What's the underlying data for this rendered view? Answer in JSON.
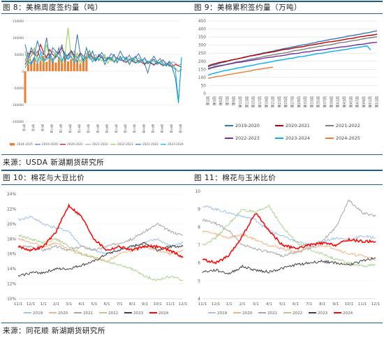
{
  "figures": {
    "fig8_title": "图 8：美棉周度签约量（吨）",
    "fig9_title": "图 9：美棉累积签约量（万吨）",
    "fig10_title": "图 10：棉花与大豆比价",
    "fig11_title": "图 11：棉花与玉米比价",
    "source_top": "来源：USDA  新湖期货研究所",
    "source_bottom": "来源：同花顺  新湖期货研究所"
  },
  "colors": {
    "rule": "#1f5f8b",
    "axis_text": "#595959",
    "grid": "#d9d9d9"
  },
  "chart_data": [
    {
      "id": "fig8",
      "type": "bar",
      "title": "",
      "ylim": [
        -150000,
        150000
      ],
      "yticks": [
        "150000",
        "100000",
        "50000",
        "0",
        "-50000",
        "-100000",
        "-150000"
      ],
      "ytick_values": [
        150000,
        100000,
        50000,
        0,
        -50000,
        -100000,
        -150000
      ],
      "xticks": [
        "第1周",
        "第4周",
        "第7周",
        "第10周",
        "第13周",
        "第16周",
        "第19周",
        "第22周",
        "第25周",
        "第28周",
        "第31周",
        "第34周",
        "第37周",
        "第40周",
        "第43周",
        "第46周",
        "第49周",
        "第52周"
      ],
      "legend_position": "bottom",
      "series": [
        {
          "name": "2024-2025",
          "kind": "bar",
          "color": "#ed7d31",
          "values": [
            -95000,
            35000,
            27000,
            41000,
            24000,
            30000,
            45000,
            28000,
            50000,
            38000,
            26000,
            42000,
            31000,
            48000,
            29000,
            36000,
            40000,
            33000,
            22000,
            37000,
            44000
          ]
        },
        {
          "name": "2019-2020",
          "kind": "line",
          "color": "#4472c4",
          "values": [
            30000,
            55000,
            25000,
            42000,
            60000,
            38000,
            28000,
            45000,
            52000,
            35000,
            40000,
            70000,
            30000,
            48000,
            36000,
            58000,
            42000,
            28000,
            50000,
            34000,
            46000,
            62000,
            38000,
            30000,
            44000,
            56000,
            40000,
            34000,
            52000,
            46000,
            38000,
            60000,
            44000,
            36000,
            48000,
            30000,
            40000,
            52000,
            34000,
            20000,
            -5000,
            30000,
            45000,
            28000,
            38000,
            22000,
            15000,
            30000,
            20000,
            8000,
            -2000,
            5000
          ]
        },
        {
          "name": "2020-2021",
          "kind": "line",
          "color": "#c00000",
          "values": [
            20000,
            40000,
            60000,
            50000,
            45000,
            80000,
            55000,
            40000,
            65000,
            50000,
            42000,
            58000,
            70000,
            50000,
            46000,
            62000,
            48000,
            40000,
            55000,
            44000,
            36000,
            50000,
            42000,
            34000,
            46000,
            40000,
            30000,
            42000,
            36000,
            28000,
            40000,
            34000,
            30000,
            26000,
            36000,
            30000,
            24000,
            32000,
            26000,
            20000,
            28000,
            24000,
            18000,
            26000,
            22000,
            16000,
            24000,
            18000,
            14000,
            20000,
            16000,
            12000
          ]
        },
        {
          "name": "2021-2022",
          "kind": "line",
          "color": "#a5a5a5",
          "values": [
            50000,
            35000,
            45000,
            60000,
            40000,
            30000,
            55000,
            45000,
            35000,
            60000,
            50000,
            40000,
            65000,
            45000,
            35000,
            50000,
            60000,
            40000,
            30000,
            45000,
            55000,
            35000,
            40000,
            50000,
            30000,
            45000,
            38000,
            42000,
            30000,
            48000,
            36000,
            40000,
            28000,
            44000,
            32000,
            38000,
            26000,
            40000,
            30000,
            34000,
            24000,
            36000,
            28000,
            30000,
            22000,
            32000,
            26000,
            20000,
            28000,
            24000,
            18000,
            22000
          ]
        },
        {
          "name": "2022-2023",
          "kind": "line",
          "color": "#92d050",
          "values": [
            60000,
            20000,
            50000,
            70000,
            30000,
            45000,
            25000,
            80000,
            40000,
            30000,
            60000,
            35000,
            25000,
            50000,
            130000,
            40000,
            30000,
            55000,
            20000,
            45000,
            35000,
            60000,
            28000,
            42000,
            38000,
            30000,
            50000,
            24000,
            40000,
            34000,
            28000,
            44000,
            30000,
            36000,
            26000,
            40000,
            32000,
            28000,
            36000,
            24000,
            30000,
            26000,
            34000,
            22000,
            28000,
            18000,
            24000,
            14000,
            18000,
            10000,
            -2000,
            8000
          ]
        },
        {
          "name": "2021-2022b",
          "kind": "line",
          "color": "#2f75b5",
          "values": [
            80000,
            40000,
            70000,
            50000,
            90000,
            60000,
            50000,
            100000,
            40000,
            70000,
            60000,
            50000,
            80000,
            30000,
            50000,
            60000,
            40000,
            110000,
            50000,
            30000,
            70000,
            40000,
            60000,
            30000,
            50000,
            45000,
            20000,
            40000,
            35000,
            50000,
            25000,
            45000,
            30000,
            40000,
            20000,
            35000,
            45000,
            25000,
            30000,
            40000,
            22000,
            30000,
            36000,
            20000,
            28000,
            34000,
            18000,
            26000,
            10000,
            -20000,
            -95000,
            40000
          ]
        },
        {
          "name": "2023-2024",
          "kind": "line",
          "color": "#00b0f0",
          "values": [
            10000,
            30000,
            20000,
            40000,
            25000,
            55000,
            30000,
            35000,
            45000,
            25000,
            50000,
            40000,
            30000,
            55000,
            35000,
            45000,
            25000,
            40000,
            50000,
            30000,
            38000,
            45000,
            28000,
            40000,
            34000,
            46000,
            30000,
            36000,
            42000,
            26000,
            38000,
            32000,
            44000,
            28000,
            34000,
            40000,
            24000,
            30000,
            36000,
            22000,
            30000,
            26000,
            20000,
            28000,
            24000,
            18000,
            22000,
            16000,
            12000,
            5000,
            -90000,
            42000
          ]
        }
      ],
      "legend": [
        "2024-2025",
        "2019-2020",
        "2020-2021",
        "2021-2022",
        "2022-2023",
        "2021-2022",
        "2023-2024"
      ]
    },
    {
      "id": "fig9",
      "type": "line",
      "title": "",
      "ylim": [
        0,
        450
      ],
      "yticks": [
        "450",
        "400",
        "350",
        "300",
        "250",
        "200",
        "150",
        "100",
        "50",
        "0"
      ],
      "ytick_values": [
        450,
        400,
        350,
        300,
        250,
        200,
        150,
        100,
        50,
        0
      ],
      "xticks": [
        "第1周",
        "第3周",
        "第5周",
        "第7周",
        "第9周",
        "第11周",
        "第13周",
        "第15周",
        "第17周",
        "第19周",
        "第21周",
        "第23周",
        "第25周",
        "第27周",
        "第29周",
        "第31周",
        "第33周",
        "第35周",
        "第37周",
        "第39周",
        "第41周",
        "第43周",
        "第45周",
        "第47周",
        "第49周",
        "第51周",
        "第53周"
      ],
      "legend_position": "bottom",
      "series": [
        {
          "name": "2019-2020",
          "color": "#2f75b5",
          "start": 165,
          "end": 388,
          "n": 53
        },
        {
          "name": "2020-2021",
          "color": "#c00000",
          "start": 172,
          "end": 368,
          "n": 53
        },
        {
          "name": "2021-2022",
          "color": "#7f7f7f",
          "start": 150,
          "end": 352,
          "n": 53
        },
        {
          "name": "2022-2023",
          "color": "#7030a0",
          "start": 155,
          "end": 318,
          "n": 53
        },
        {
          "name": "2023-2024",
          "color": "#00b0f0",
          "start": 115,
          "end": 295,
          "n": 50,
          "tail": 270
        },
        {
          "name": "2024-2025",
          "color": "#ed7d31",
          "start": 95,
          "end": 165,
          "n": 21
        }
      ],
      "legend": [
        "2019-2020",
        "2020-2021",
        "2021-2022",
        "2022-2023",
        "2023-2024",
        "2024-2025"
      ]
    },
    {
      "id": "fig10",
      "type": "line",
      "title": "",
      "ylim": [
        0.1,
        0.24
      ],
      "yticks": [
        "24%",
        "22%",
        "20%",
        "18%",
        "16%",
        "14%",
        "12%",
        "10%"
      ],
      "ytick_values": [
        0.24,
        0.22,
        0.2,
        0.18,
        0.16,
        0.14,
        0.12,
        0.1
      ],
      "xticks": [
        "11/1",
        "12/1",
        "1/1",
        "2/1",
        "3/1",
        "4/1",
        "5/1",
        "6/1",
        "7/1",
        "8/1",
        "9/1",
        "10/1",
        "11/1",
        "12/1"
      ],
      "legend_position": "bottom",
      "series": [
        {
          "name": "2019",
          "color": "#9dc3e6",
          "values": [
            0.205,
            0.21,
            0.2,
            0.195,
            0.19,
            0.17,
            0.165,
            0.16,
            0.165,
            0.17,
            0.175,
            0.18,
            0.17,
            0.175
          ]
        },
        {
          "name": "2020",
          "color": "#f4b183",
          "values": [
            0.18,
            0.175,
            0.17,
            0.175,
            0.165,
            0.16,
            0.155,
            0.15,
            0.16,
            0.165,
            0.17,
            0.165,
            0.16,
            0.165
          ]
        },
        {
          "name": "2021",
          "color": "#a5a5a5",
          "values": [
            0.17,
            0.17,
            0.165,
            0.17,
            0.165,
            0.17,
            0.165,
            0.17,
            0.175,
            0.18,
            0.19,
            0.2,
            0.19,
            0.185
          ]
        },
        {
          "name": "2022",
          "color": "#a9d18e",
          "values": [
            0.185,
            0.18,
            0.175,
            0.18,
            0.17,
            0.16,
            0.155,
            0.15,
            0.145,
            0.14,
            0.13,
            0.125,
            0.13,
            0.125
          ]
        },
        {
          "name": "2023",
          "color": "#404040",
          "values": [
            0.13,
            0.135,
            0.135,
            0.14,
            0.14,
            0.145,
            0.15,
            0.16,
            0.165,
            0.17,
            0.175,
            0.165,
            0.17,
            0.17
          ]
        },
        {
          "name": "2024",
          "color": "#ff0000",
          "values": [
            0.17,
            0.165,
            0.17,
            0.19,
            0.225,
            0.21,
            0.18,
            0.165,
            0.17,
            0.165,
            0.17,
            0.17,
            0.165,
            0.155
          ]
        }
      ],
      "legend": [
        "2019",
        "2020",
        "2021",
        "2022",
        "2023",
        "2024"
      ]
    },
    {
      "id": "fig11",
      "type": "line",
      "title": "",
      "ylim": [
        4,
        10
      ],
      "yticks": [
        "10",
        "9",
        "8",
        "7",
        "6",
        "5",
        "4"
      ],
      "ytick_values": [
        10,
        9,
        8,
        7,
        6,
        5,
        4
      ],
      "xticks": [
        "11/1",
        "12/1",
        "1/1",
        "2/1",
        "3/1",
        "4/1",
        "5/1",
        "6/1",
        "7/1",
        "8/1",
        "9/1",
        "10/1",
        "11/1",
        "12/1"
      ],
      "legend_position": "bottom",
      "series": [
        {
          "name": "2019",
          "color": "#9dc3e6",
          "values": [
            9.2,
            9.0,
            8.8,
            8.6,
            8.4,
            7.8,
            7.5,
            7.2,
            7.0,
            7.2,
            7.4,
            7.3,
            7.5,
            7.4
          ]
        },
        {
          "name": "2020",
          "color": "#f4b183",
          "values": [
            7.8,
            7.6,
            7.4,
            7.6,
            7.3,
            7.0,
            6.8,
            6.6,
            6.8,
            7.0,
            6.8,
            6.5,
            6.4,
            6.2
          ]
        },
        {
          "name": "2021",
          "color": "#a5a5a5",
          "values": [
            8.4,
            8.2,
            7.8,
            7.0,
            6.8,
            6.6,
            6.4,
            6.6,
            6.8,
            7.2,
            8.0,
            9.5,
            8.8,
            8.6
          ]
        },
        {
          "name": "2022",
          "color": "#a9d18e",
          "values": [
            7.0,
            7.4,
            8.2,
            9.0,
            8.8,
            9.2,
            8.0,
            7.2,
            6.8,
            6.5,
            6.2,
            6.0,
            5.8,
            5.9
          ]
        },
        {
          "name": "2023",
          "color": "#404040",
          "values": [
            5.5,
            5.6,
            5.4,
            5.8,
            5.6,
            5.5,
            5.7,
            5.9,
            6.0,
            6.1,
            6.0,
            5.9,
            6.1,
            6.3
          ]
        },
        {
          "name": "2024",
          "color": "#ff0000",
          "values": [
            6.2,
            6.0,
            6.4,
            7.5,
            8.8,
            7.8,
            7.0,
            6.8,
            7.0,
            7.1,
            7.0,
            7.3,
            7.2,
            7.2
          ]
        }
      ],
      "legend": [
        "2019",
        "2020",
        "2021",
        "2022",
        "2023",
        "2024"
      ]
    }
  ]
}
